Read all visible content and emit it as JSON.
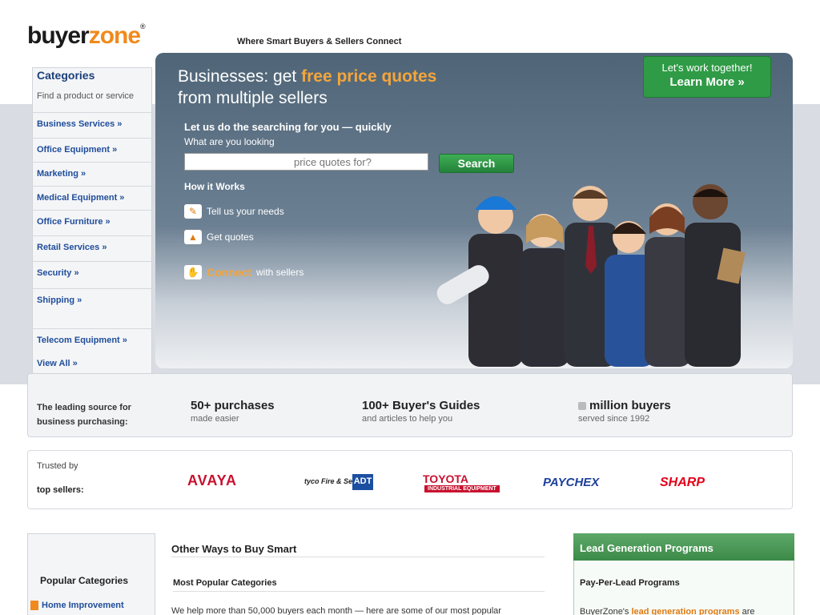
{
  "header": {
    "logo_buyer": "buyer",
    "logo_zone": "zone",
    "logo_tm": "®",
    "tagline": "Where Smart Buyers & Sellers Connect",
    "cta_small": "Let's work together!",
    "cta_big": "Learn More »"
  },
  "hero": {
    "headline_pre": "Businesses: get ",
    "headline_accent": "free price quotes",
    "headline_post": "from multiple sellers",
    "sub": "Let us do the searching for you — quickly",
    "question": "What are you looking",
    "search_placeholder": "price quotes for?",
    "search_button": "Search",
    "how_title": "How it Works",
    "how_steps": [
      {
        "label": "Tell us your needs",
        "accent": ""
      },
      {
        "label": "Get quotes",
        "accent": ""
      },
      {
        "label": "with sellers",
        "accent": "Connect"
      }
    ]
  },
  "sidebar": {
    "heading": "Categories",
    "sub": "Find a product or service",
    "items": [
      {
        "label": "Business Services »"
      },
      {
        "label": "Office Equipment »"
      },
      {
        "label": "Marketing »"
      },
      {
        "label": "Medical Equipment »"
      },
      {
        "label": "Office Furniture »"
      },
      {
        "label": "Retail Services »"
      },
      {
        "label": "Security »"
      },
      {
        "label": "Shipping »"
      },
      {
        "label": "Telecom Equipment »"
      }
    ],
    "view_all": "View All »"
  },
  "stats": {
    "lead": "The leading source for business purchasing:",
    "items": [
      {
        "title": "50+ purchases",
        "sub": "made easier"
      },
      {
        "title": "100+ Buyer's Guides",
        "sub": "and articles to help you"
      },
      {
        "title": "million buyers",
        "sub": "served since 1992"
      }
    ]
  },
  "sellers": {
    "line1": "Trusted by",
    "line2": "top sellers:",
    "brands": [
      "AVAYA",
      "tyco Fire & Security",
      "ADT",
      "TOYOTA",
      "INDUSTRIAL EQUIPMENT",
      "PAYCHEX",
      "SHARP"
    ]
  },
  "bottom": {
    "cat_heading": "Popular Categories",
    "cat_item": "Home Improvement",
    "mid_h1": "Other Ways to Buy Smart",
    "mid_h2": "Most Popular Categories",
    "mid_p": "We help more than 50,000 buyers each month — here are some of our most popular",
    "lead_heading": "Lead Generation Programs",
    "lead_t1": "Pay-Per-Lead Programs",
    "lead_t2_pre": "BuyerZone's ",
    "lead_t2_accent": "lead generation programs",
    "lead_t2_post": " are"
  },
  "colors": {
    "brand_orange": "#f08a1c",
    "cta_green": "#2f9b46",
    "link_blue": "#1f4d9a"
  }
}
